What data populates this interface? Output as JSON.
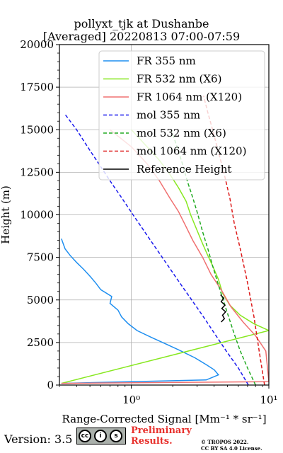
{
  "header": {
    "title_line1": "pollyxt_tjk at Dushanbe",
    "title_line2": "[Averaged] 20220813 07:00-07:59"
  },
  "footer": {
    "version": "Version: 3.5",
    "cc_icon_cc": "cc",
    "cc_icon_by": "i",
    "cc_icon_sa": "s",
    "cc_strip": "BY SA",
    "prelim_line1": "Preliminary",
    "prelim_line2": "Results.",
    "copyright_line1": "© TROPOS 2022.",
    "copyright_line2": "CC BY SA 4.0 License."
  },
  "chart_data": {
    "type": "line",
    "title": "pollyxt_tjk at Dushanbe [Averaged] 20220813 07:00-07:59",
    "xlabel": "Range-Corrected Signal [Mm⁻¹ * sr⁻¹]",
    "ylabel": "Height (m)",
    "xscale": "log",
    "xlim": [
      0.3,
      10
    ],
    "ylim": [
      0,
      20000
    ],
    "xticks": [
      {
        "value": 1,
        "label": "10⁰"
      },
      {
        "value": 10,
        "label": "10¹"
      }
    ],
    "yticks": [
      0,
      2500,
      5000,
      7500,
      10000,
      12500,
      15000,
      17500,
      20000
    ],
    "grid": true,
    "legend_position": "top-right",
    "series": [
      {
        "name": "FR 355 nm",
        "style": "solid",
        "color": "#1f8ff0",
        "points": [
          [
            0.31,
            100
          ],
          [
            3.5,
            300
          ],
          [
            4.3,
            600
          ],
          [
            4.0,
            900
          ],
          [
            3.5,
            1200
          ],
          [
            2.9,
            1600
          ],
          [
            2.3,
            2000
          ],
          [
            1.8,
            2400
          ],
          [
            1.4,
            2800
          ],
          [
            1.1,
            3200
          ],
          [
            0.95,
            3600
          ],
          [
            0.85,
            4000
          ],
          [
            0.8,
            4400
          ],
          [
            0.7,
            4800
          ],
          [
            0.72,
            5200
          ],
          [
            0.6,
            5600
          ],
          [
            0.55,
            6000
          ],
          [
            0.5,
            6400
          ],
          [
            0.45,
            6800
          ],
          [
            0.4,
            7200
          ],
          [
            0.36,
            7600
          ],
          [
            0.33,
            8000
          ],
          [
            0.31,
            8600
          ]
        ]
      },
      {
        "name": "FR 532 nm (X6)",
        "style": "solid",
        "color": "#87e820",
        "points": [
          [
            0.31,
            100
          ],
          [
            10,
            3200
          ],
          [
            7.8,
            3600
          ],
          [
            6.2,
            4100
          ],
          [
            5.2,
            4700
          ],
          [
            4.6,
            5400
          ],
          [
            4.3,
            6200
          ],
          [
            3.9,
            7000
          ],
          [
            3.6,
            7600
          ],
          [
            3.3,
            8300
          ],
          [
            3.0,
            9100
          ],
          [
            2.7,
            10000
          ],
          [
            2.5,
            10800
          ],
          [
            2.2,
            11600
          ],
          [
            1.9,
            12400
          ],
          [
            1.6,
            13200
          ],
          [
            1.3,
            14000
          ],
          [
            1.0,
            15000
          ]
        ]
      },
      {
        "name": "FR 1064 nm (X120)",
        "style": "solid",
        "color": "#f07070",
        "points": [
          [
            0.31,
            100
          ],
          [
            10,
            200
          ],
          [
            9.5,
            2000
          ],
          [
            8.0,
            2900
          ],
          [
            6.5,
            3700
          ],
          [
            5.3,
            4600
          ],
          [
            4.5,
            5600
          ],
          [
            3.8,
            6500
          ],
          [
            3.3,
            7500
          ],
          [
            2.8,
            8500
          ],
          [
            2.5,
            9300
          ],
          [
            2.2,
            10200
          ],
          [
            1.9,
            11000
          ],
          [
            1.6,
            12000
          ],
          [
            1.3,
            13000
          ],
          [
            1.0,
            14000
          ],
          [
            0.7,
            15000
          ]
        ]
      },
      {
        "name": "mol 355 nm",
        "style": "dashed",
        "color": "#1a1aee",
        "points": [
          [
            7.1,
            0
          ],
          [
            6.0,
            1000
          ],
          [
            4.9,
            2000
          ],
          [
            4.05,
            3000
          ],
          [
            3.35,
            4000
          ],
          [
            2.75,
            5000
          ],
          [
            2.25,
            6000
          ],
          [
            1.85,
            7000
          ],
          [
            1.52,
            8000
          ],
          [
            1.25,
            9000
          ],
          [
            1.03,
            10000
          ],
          [
            0.85,
            11000
          ],
          [
            0.7,
            12000
          ],
          [
            0.58,
            13000
          ],
          [
            0.48,
            14000
          ],
          [
            0.4,
            15000
          ],
          [
            0.33,
            15900
          ]
        ]
      },
      {
        "name": "mol 532 nm (X6)",
        "style": "dashed",
        "color": "#22aa22",
        "points": [
          [
            8.0,
            0
          ],
          [
            7.0,
            1000
          ],
          [
            6.2,
            2000
          ],
          [
            5.6,
            3000
          ],
          [
            5.1,
            4000
          ],
          [
            4.65,
            5000
          ],
          [
            4.25,
            6000
          ],
          [
            3.9,
            7000
          ],
          [
            3.6,
            8000
          ],
          [
            3.3,
            9000
          ],
          [
            3.05,
            10000
          ],
          [
            2.8,
            11000
          ],
          [
            2.55,
            12000
          ],
          [
            2.35,
            13000
          ],
          [
            2.15,
            14000
          ],
          [
            1.95,
            15000
          ]
        ]
      },
      {
        "name": "mol 1064 nm (X120)",
        "style": "dashed",
        "color": "#dd1a1a",
        "points": [
          [
            9.3,
            0
          ],
          [
            8.5,
            2000
          ],
          [
            7.8,
            4000
          ],
          [
            7.0,
            6000
          ],
          [
            6.2,
            8000
          ],
          [
            5.6,
            9500
          ],
          [
            5.2,
            11000
          ],
          [
            4.7,
            12500
          ],
          [
            4.2,
            14000
          ],
          [
            3.9,
            15000
          ],
          [
            3.6,
            16000
          ],
          [
            3.35,
            17000
          ]
        ]
      },
      {
        "name": "Reference Height",
        "style": "solid",
        "color": "#000000",
        "points": [
          [
            4.5,
            3700
          ],
          [
            4.75,
            3900
          ],
          [
            4.6,
            4100
          ],
          [
            4.85,
            4300
          ],
          [
            4.55,
            4500
          ],
          [
            4.8,
            4700
          ],
          [
            4.5,
            4900
          ],
          [
            4.7,
            5100
          ],
          [
            4.45,
            5300
          ]
        ]
      }
    ]
  }
}
